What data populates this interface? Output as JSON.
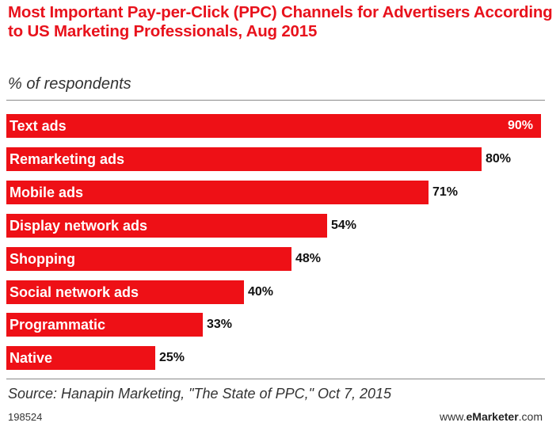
{
  "header": {
    "title": "Most Important Pay-per-Click (PPC) Channels for Advertisers According to US Marketing Professionals, Aug 2015",
    "subtitle": "% of respondents"
  },
  "footer": {
    "source": "Source: Hanapin Marketing, \"The State of PPC,\" Oct 7, 2015",
    "chart_id": "198524",
    "brand_prefix": "www.",
    "brand_name": "eMarketer",
    "brand_suffix": ".com"
  },
  "colors": {
    "bar": "#ee1016",
    "title": "#e8121c"
  },
  "chart_data": {
    "type": "bar",
    "orientation": "horizontal",
    "title": "Most Important Pay-per-Click (PPC) Channels for Advertisers According to US Marketing Professionals, Aug 2015",
    "subtitle": "% of respondents",
    "categories": [
      "Text ads",
      "Remarketing ads",
      "Mobile ads",
      "Display network ads",
      "Shopping",
      "Social network ads",
      "Programmatic",
      "Native"
    ],
    "values": [
      90,
      80,
      71,
      54,
      48,
      40,
      33,
      25
    ],
    "value_labels": [
      "90%",
      "80%",
      "71%",
      "54%",
      "48%",
      "40%",
      "33%",
      "25%"
    ],
    "xlim": [
      0,
      90
    ],
    "grid": false,
    "legend": "none"
  }
}
